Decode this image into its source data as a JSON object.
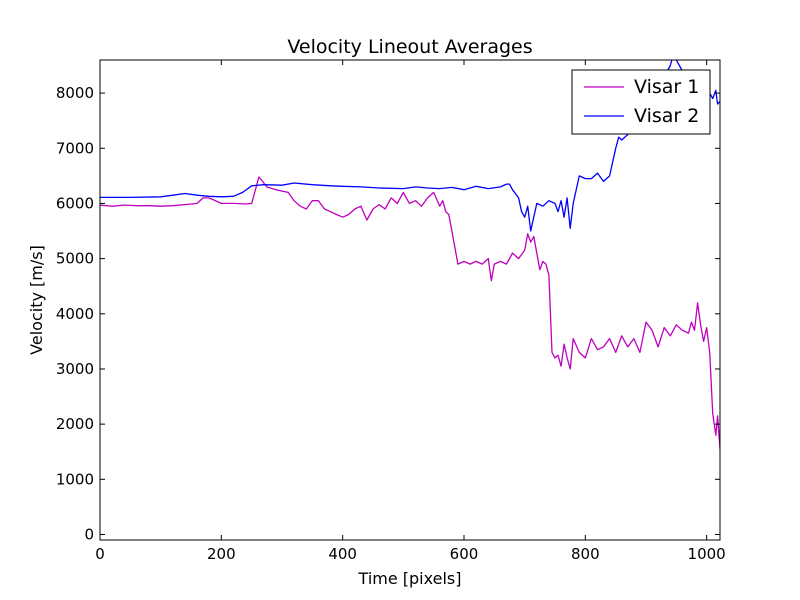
{
  "chart_data": {
    "type": "line",
    "title": "Velocity Lineout Averages",
    "xlabel": "Time [pixels]",
    "ylabel": "Velocity [m/s]",
    "xlim": [
      0,
      1022
    ],
    "ylim": [
      -100,
      8600
    ],
    "xticks": [
      0,
      200,
      400,
      600,
      800,
      1000
    ],
    "yticks": [
      0,
      1000,
      2000,
      3000,
      4000,
      5000,
      6000,
      7000,
      8000
    ],
    "grid": false,
    "legend_position": "upper right",
    "series": [
      {
        "name": "Visar 1",
        "color": "#bf00bf",
        "x": [
          0,
          20,
          40,
          60,
          80,
          100,
          120,
          140,
          160,
          170,
          180,
          200,
          220,
          240,
          250,
          255,
          262,
          268,
          275,
          290,
          310,
          320,
          330,
          340,
          350,
          360,
          370,
          380,
          390,
          400,
          410,
          420,
          430,
          440,
          450,
          460,
          470,
          480,
          490,
          500,
          510,
          520,
          530,
          540,
          550,
          560,
          565,
          570,
          575,
          580,
          590,
          600,
          610,
          620,
          630,
          640,
          645,
          650,
          660,
          670,
          680,
          690,
          700,
          705,
          710,
          715,
          720,
          725,
          730,
          735,
          740,
          745,
          750,
          755,
          760,
          765,
          770,
          775,
          780,
          790,
          800,
          810,
          820,
          830,
          840,
          850,
          860,
          870,
          880,
          890,
          900,
          910,
          920,
          930,
          940,
          950,
          960,
          970,
          975,
          980,
          985,
          990,
          995,
          1000,
          1005,
          1010,
          1015,
          1018,
          1022
        ],
        "y": [
          5970,
          5950,
          5970,
          5960,
          5960,
          5950,
          5960,
          5980,
          6000,
          6100,
          6100,
          6000,
          6000,
          5990,
          6000,
          6200,
          6480,
          6400,
          6300,
          6250,
          6200,
          6050,
          5950,
          5900,
          6050,
          6050,
          5900,
          5850,
          5800,
          5750,
          5800,
          5900,
          5950,
          5700,
          5900,
          5980,
          5900,
          6100,
          6000,
          6200,
          6000,
          6050,
          5950,
          6100,
          6200,
          5950,
          6050,
          5850,
          5800,
          5500,
          4900,
          4950,
          4900,
          4950,
          4900,
          5000,
          4600,
          4900,
          4950,
          4900,
          5100,
          5000,
          5150,
          5450,
          5300,
          5400,
          5100,
          4800,
          4950,
          4900,
          4700,
          3300,
          3200,
          3250,
          3050,
          3450,
          3200,
          3000,
          3550,
          3300,
          3200,
          3550,
          3350,
          3400,
          3550,
          3300,
          3600,
          3400,
          3550,
          3300,
          3850,
          3700,
          3400,
          3750,
          3600,
          3800,
          3700,
          3650,
          3850,
          3700,
          4200,
          3800,
          3500,
          3750,
          3300,
          2200,
          1800,
          2150,
          1550
        ]
      },
      {
        "name": "Visar 2",
        "color": "#0000ff",
        "x": [
          0,
          50,
          100,
          120,
          140,
          160,
          180,
          200,
          220,
          235,
          250,
          270,
          300,
          320,
          350,
          380,
          400,
          430,
          460,
          500,
          520,
          540,
          560,
          580,
          600,
          620,
          640,
          660,
          670,
          675,
          680,
          690,
          695,
          700,
          705,
          710,
          720,
          730,
          740,
          750,
          755,
          760,
          765,
          770,
          775,
          780,
          790,
          800,
          810,
          820,
          830,
          840,
          850,
          855,
          860,
          870,
          880,
          890,
          900,
          910,
          920,
          930,
          940,
          945,
          950,
          960,
          970,
          980,
          990,
          1000,
          1010,
          1015,
          1018,
          1022
        ],
        "y": [
          6110,
          6110,
          6120,
          6150,
          6180,
          6150,
          6130,
          6120,
          6130,
          6200,
          6320,
          6340,
          6330,
          6370,
          6340,
          6320,
          6310,
          6300,
          6280,
          6270,
          6300,
          6280,
          6270,
          6290,
          6250,
          6310,
          6270,
          6300,
          6350,
          6350,
          6250,
          6100,
          5850,
          5750,
          5950,
          5500,
          6000,
          5950,
          6050,
          6000,
          5850,
          6050,
          5750,
          6100,
          5550,
          6000,
          6500,
          6450,
          6450,
          6550,
          6400,
          6500,
          7000,
          7200,
          7150,
          7250,
          7500,
          7700,
          7900,
          8000,
          8100,
          8300,
          8500,
          8700,
          8600,
          8400,
          8300,
          8100,
          8000,
          8100,
          7900,
          8050,
          7800,
          7850
        ]
      }
    ]
  }
}
